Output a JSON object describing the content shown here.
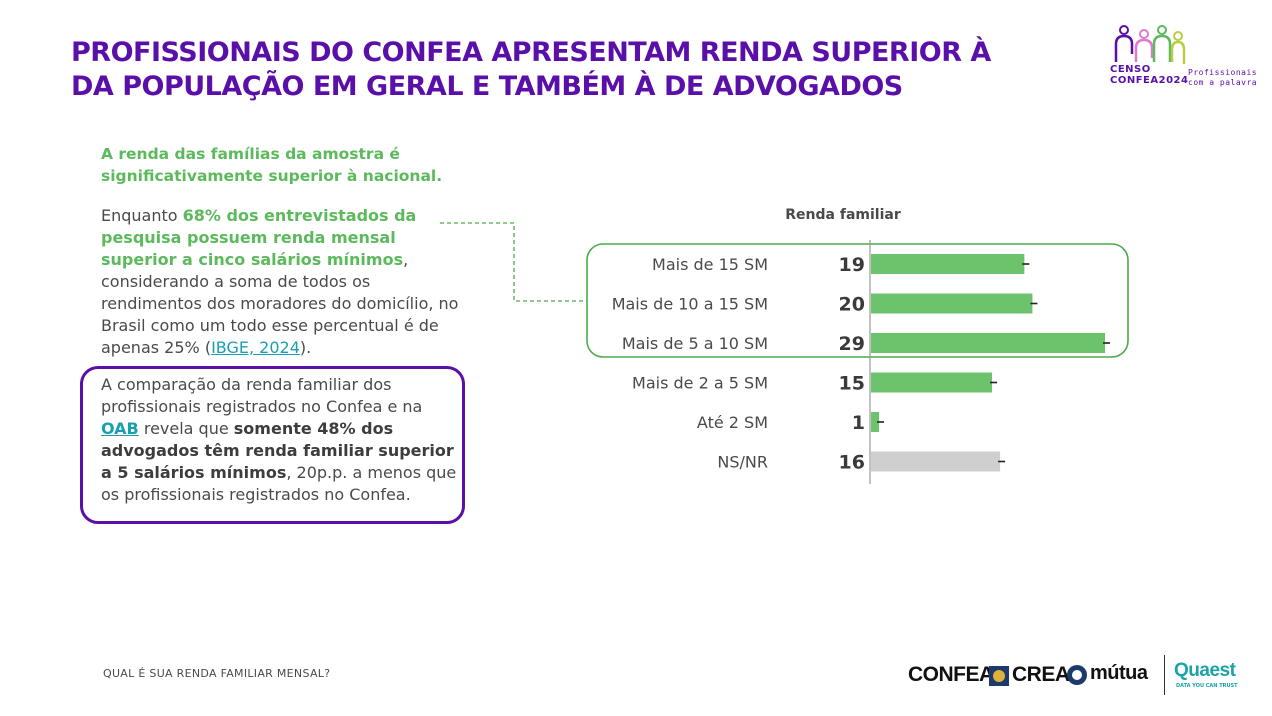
{
  "title": {
    "line1": "PROFISSIONAIS DO CONFEA APRESENTAM RENDA SUPERIOR À",
    "line2": "DA POPULAÇÃO EM GERAL E TAMBÉM  À DE ADVOGADOS"
  },
  "censo_logo": {
    "line1": "CENSO",
    "line2": "CONFEA2024",
    "tagline1": "Profissionais",
    "tagline2": "com a palavra"
  },
  "lead": "A renda das famílias da amostra é significativamente superior à nacional.",
  "paragraph": {
    "part1": "Enquanto ",
    "highlight": "68% dos entrevistados da pesquisa possuem renda mensal superior a cinco salários mínimos",
    "part2": ", considerando a soma de todos os rendimentos dos moradores do domicílio, no Brasil como um todo esse percentual é de apenas 25% (",
    "link": "IBGE, 2024",
    "part3": ")."
  },
  "callout": {
    "part1": "A comparação da renda familiar dos profissionais registrados no Confea e na ",
    "oab": "OAB",
    "part2": " revela que ",
    "bold": "somente 48% dos advogados têm renda familiar superior a 5 salários mínimos",
    "part3": ", 20p.p. a menos que os profissionais registrados no Confea."
  },
  "footer_question": "QUAL É SUA RENDA FAMILIAR MENSAL?",
  "logos": {
    "confea": "CONFEA",
    "crea": "CREA",
    "mutua": "mútua",
    "quaest": "Quaest",
    "quaest_tagline": "DATA YOU CAN TRUST"
  },
  "colors": {
    "purple": "#5a0fa8",
    "green": "#6cc36c",
    "gray_bar": "#cfcfcf",
    "link": "#1a9fb0"
  },
  "chart_data": {
    "type": "bar",
    "orientation": "horizontal",
    "title": "Renda familiar",
    "categories": [
      "Mais de 15 SM",
      "Mais de 10 a 15 SM",
      "Mais de 5 a 10 SM",
      "Mais de 2 a 5 SM",
      "Até 2 SM",
      "NS/NR"
    ],
    "values": [
      19,
      20,
      29,
      15,
      1,
      16
    ],
    "bar_colors": [
      "#6cc36c",
      "#6cc36c",
      "#6cc36c",
      "#6cc36c",
      "#6cc36c",
      "#cfcfcf"
    ],
    "highlighted_group": [
      "Mais de 15 SM",
      "Mais de 10 a 15 SM",
      "Mais de 5 a 10 SM"
    ],
    "xlim": [
      0,
      30
    ],
    "show_error_markers": true
  }
}
